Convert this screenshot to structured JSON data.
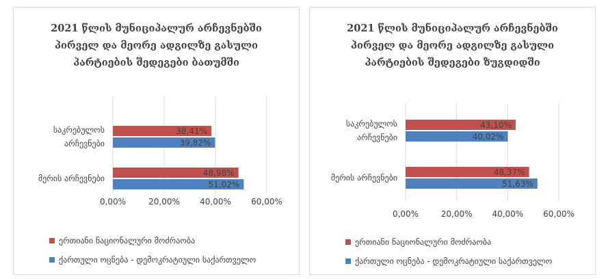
{
  "colors": {
    "series1": "#c0504d",
    "series2": "#4f81bd",
    "grid": "#d9d9d9",
    "text": "#404040"
  },
  "chart_data": [
    {
      "type": "bar",
      "orientation": "horizontal",
      "title_lines": [
        "2021 წლის მუნიციპალურ არჩევნებში",
        "პირველ და მეორე ადგილზე გასული",
        "პარტიების შედეგები ბათუმში"
      ],
      "categories": [
        "საკრებულოს არჩევნები",
        "მერის არჩევნები"
      ],
      "category_lines": [
        [
          "საკრებულოს",
          "არჩევნები"
        ],
        [
          "მერის არჩევნები"
        ]
      ],
      "series": [
        {
          "name": "ერთიანი ნაციონალური მოძრაობა",
          "values": [
            38.41,
            48.98
          ],
          "labels": [
            "38,41%",
            "48,98%"
          ]
        },
        {
          "name": "ქართული ოცნება - დემოკრატიული საქართველო",
          "values": [
            39.82,
            51.02
          ],
          "labels": [
            "39,82%",
            "51,02%"
          ]
        }
      ],
      "xlim": [
        0,
        60
      ],
      "xticks": [
        "0,00%",
        "20,00%",
        "40,00%",
        "60,00%"
      ],
      "grid": true,
      "legend_position": "bottom"
    },
    {
      "type": "bar",
      "orientation": "horizontal",
      "title_lines": [
        "2021 წლის მუნიციპალურ არჩევნებში",
        "პირველ და მეორე ადგილზე გასული",
        "პარტიების შედეგები ზუგდიდში"
      ],
      "categories": [
        "საკრებულოს არჩევნები",
        "მერის არჩევნები"
      ],
      "category_lines": [
        [
          "საკრებულოს",
          "არჩევნები"
        ],
        [
          "მერის არჩევნები"
        ]
      ],
      "series": [
        {
          "name": "ერთიანი ნაციონალური მოძრაობა",
          "values": [
            43.1,
            48.37
          ],
          "labels": [
            "43,10%",
            "48,37%"
          ]
        },
        {
          "name": "ქართული ოცნება - დემოკრატიული საქართველო",
          "values": [
            40.02,
            51.63
          ],
          "labels": [
            "40,02%",
            "51,63%"
          ]
        }
      ],
      "xlim": [
        0,
        60
      ],
      "xticks": [
        "0,00%",
        "20,00%",
        "40,00%",
        "60,00%"
      ],
      "grid": true,
      "legend_position": "bottom"
    }
  ]
}
